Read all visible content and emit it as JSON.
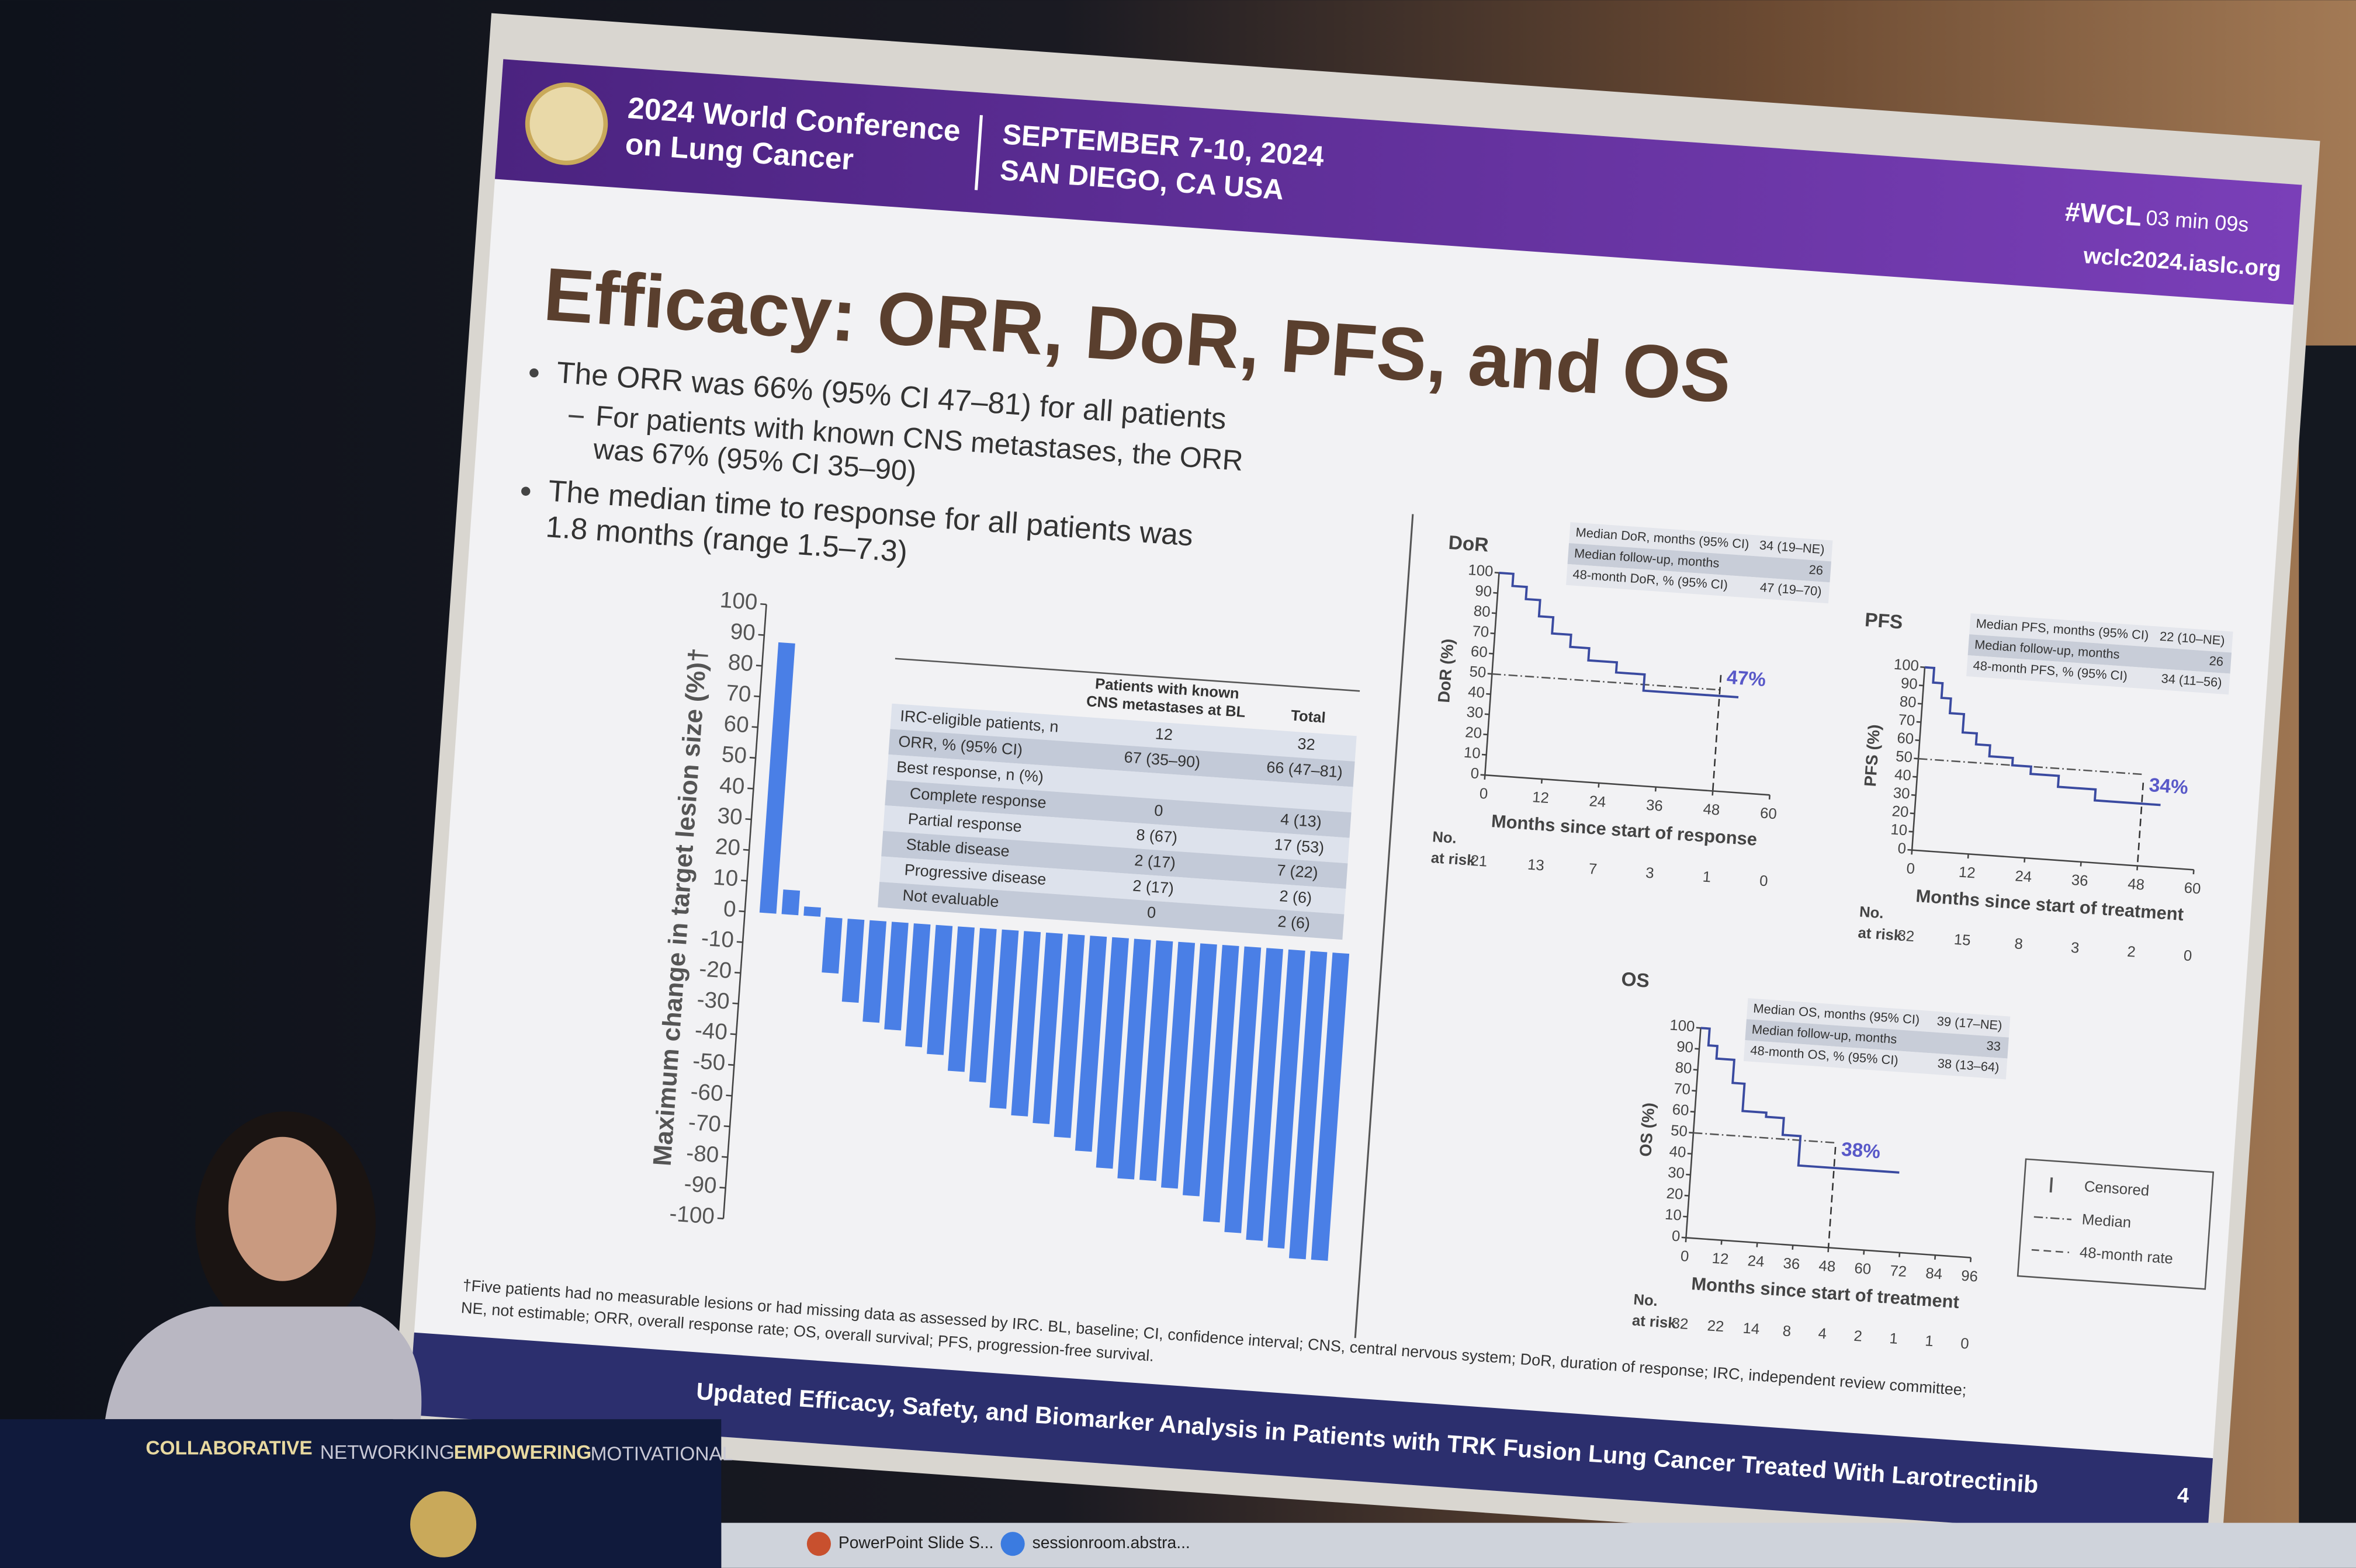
{
  "header": {
    "conference": [
      "2024 World Conference",
      "on Lung Cancer"
    ],
    "dates": "SEPTEMBER 7-10, 2024",
    "location": "SAN DIEGO, CA USA",
    "hashtag": "#WCL",
    "timer": "03 min 09s",
    "url": "wclc2024.iaslc.org"
  },
  "title": "Efficacy: ORR, DoR, PFS, and OS",
  "bullets": [
    {
      "lines": [
        "The ORR was 66% (95% CI 47–81) for all patients"
      ],
      "subbullets": [
        {
          "lines": [
            "For patients with known CNS metastases, the ORR",
            "was 67% (95% CI 35–90)"
          ]
        }
      ]
    },
    {
      "lines": [
        "The median time to response for all patients was",
        "1.8 months (range 1.5–7.3)"
      ]
    }
  ],
  "table": {
    "header": [
      [
        "Patients with known",
        "CNS metastases at BL"
      ],
      "Total"
    ],
    "rows": [
      [
        "IRC-eligible patients, n",
        "12",
        "32"
      ],
      [
        "ORR, % (95% CI)",
        "67 (35–90)",
        "66 (47–81)"
      ],
      [
        "Best response, n (%)"
      ],
      [
        "Complete response",
        "0",
        "4 (13)"
      ],
      [
        "Partial response",
        "8 (67)",
        "17 (53)"
      ],
      [
        "Stable disease",
        "2 (17)",
        "7 (22)"
      ],
      [
        "Progressive disease",
        "2 (17)",
        "2 (6)"
      ],
      [
        "Not evaluable",
        "0",
        "2 (6)"
      ]
    ]
  },
  "footnotes": [
    "†Five patients had no measurable lesions or had missing data as assessed by IRC. BL, baseline; CI, confidence interval; CNS, central nervous system; DoR, duration of response; IRC, independent review committee;",
    "NE, not estimable; ORR, overall response rate; OS, overall survival; PFS, progression-free survival."
  ],
  "footer": {
    "title": "Updated Efficacy, Safety, and Biomarker Analysis in Patients with TRK Fusion Lung Cancer Treated With Larotrectinib",
    "page": "4"
  },
  "podium": {
    "words": [
      "COLLABORATIVE",
      "NETWORKING",
      "EMPOWERING",
      "MOTIVATIONAL"
    ]
  },
  "taskbar": [
    "PowerPoint Slide S...",
    "sessionroom.abstra..."
  ],
  "chart_data": [
    {
      "type": "bar",
      "y_label": "Maximum change in target lesion size (%)†",
      "values": [
        88,
        8,
        3,
        -18,
        -27,
        -33,
        -35,
        -40,
        -42,
        -47,
        -50,
        -58,
        -60,
        -62,
        -66,
        -70,
        -75,
        -78,
        -78,
        -80,
        -82,
        -90,
        -93,
        -95,
        -97,
        -100,
        -100
      ],
      "color": "#4a7fe6",
      "ylim": [
        -100,
        100
      ],
      "yticks": [
        -100,
        -90,
        -80,
        -70,
        -60,
        -50,
        -40,
        -30,
        -20,
        -10,
        0,
        10,
        20,
        30,
        40,
        50,
        60,
        70,
        80,
        90,
        100
      ]
    },
    {
      "type": "line",
      "title": "DoR",
      "x_label": "Months since start of response",
      "y_label": "DoR (%)",
      "x": [
        0,
        3,
        3,
        6,
        6,
        9,
        9,
        12,
        12,
        16,
        16,
        20,
        20,
        26,
        26,
        32,
        32,
        48,
        52
      ],
      "values": [
        100,
        100,
        94,
        94,
        88,
        88,
        80,
        80,
        72,
        72,
        66,
        66,
        60,
        60,
        55,
        55,
        47,
        47,
        47
      ],
      "color": "#3a4aa0",
      "xlim": [
        0,
        60
      ],
      "xticks": [
        0,
        12,
        24,
        36,
        48,
        60
      ],
      "ylim": [
        0,
        100
      ],
      "yticks": [
        0,
        10,
        20,
        30,
        40,
        50,
        60,
        70,
        80,
        90,
        100
      ],
      "reference_lines": {
        "median": 50,
        "landmark_month": 48
      },
      "annotation": "47%",
      "summary": [
        [
          "Median DoR, months (95% CI)",
          "34 (19–NE)"
        ],
        [
          "Median follow-up, months",
          "26"
        ],
        [
          "48-month DoR, % (95% CI)",
          "47 (19–70)"
        ]
      ],
      "risk": {
        "label": [
          "No.",
          "at risk"
        ],
        "values": [
          21,
          13,
          7,
          3,
          1,
          0
        ]
      }
    },
    {
      "type": "line",
      "title": "PFS",
      "x_label": "Months since start of treatment",
      "y_label": "PFS (%)",
      "x": [
        0,
        2,
        2,
        4,
        4,
        6,
        6,
        9,
        9,
        12,
        12,
        15,
        15,
        20,
        20,
        24,
        24,
        30,
        30,
        38,
        38,
        48,
        52
      ],
      "values": [
        100,
        100,
        92,
        92,
        84,
        84,
        76,
        76,
        66,
        66,
        60,
        60,
        54,
        54,
        50,
        50,
        46,
        46,
        40,
        40,
        34,
        34,
        34
      ],
      "color": "#3a4aa0",
      "xlim": [
        0,
        60
      ],
      "xticks": [
        0,
        12,
        24,
        36,
        48,
        60
      ],
      "ylim": [
        0,
        100
      ],
      "yticks": [
        0,
        10,
        20,
        30,
        40,
        50,
        60,
        70,
        80,
        90,
        100
      ],
      "reference_lines": {
        "median": 50,
        "landmark_month": 48
      },
      "annotation": "34%",
      "summary": [
        [
          "Median PFS, months (95% CI)",
          "22 (10–NE)"
        ],
        [
          "Median follow-up, months",
          "26"
        ],
        [
          "48-month PFS, % (95% CI)",
          "34 (11–56)"
        ]
      ],
      "risk": {
        "label": [
          "No.",
          "at risk"
        ],
        "values": [
          32,
          15,
          8,
          3,
          2,
          0
        ]
      }
    },
    {
      "type": "line",
      "title": "OS",
      "x_label": "Months since start of treatment",
      "y_label": "OS (%)",
      "x": [
        0,
        3,
        3,
        6,
        6,
        12,
        12,
        16,
        16,
        24,
        24,
        30,
        30,
        36,
        36,
        48,
        56,
        70
      ],
      "values": [
        100,
        100,
        92,
        92,
        86,
        86,
        75,
        75,
        62,
        62,
        60,
        60,
        52,
        52,
        38,
        38,
        38,
        38
      ],
      "color": "#3a4aa0",
      "xlim": [
        0,
        96
      ],
      "xticks": [
        0,
        12,
        24,
        36,
        48,
        60,
        72,
        84,
        96
      ],
      "ylim": [
        0,
        100
      ],
      "yticks": [
        0,
        10,
        20,
        30,
        40,
        50,
        60,
        70,
        80,
        90,
        100
      ],
      "reference_lines": {
        "median": 50,
        "landmark_month": 48
      },
      "annotation": "38%",
      "summary": [
        [
          "Median OS, months (95% CI)",
          "39 (17–NE)"
        ],
        [
          "Median follow-up, months",
          "33"
        ],
        [
          "48-month OS, % (95% CI)",
          "38 (13–64)"
        ]
      ],
      "risk": {
        "label": [
          "No.",
          "at risk"
        ],
        "values": [
          32,
          22,
          14,
          8,
          4,
          2,
          1,
          1,
          0
        ]
      },
      "legend": [
        "Censored",
        "Median",
        "48-month rate"
      ]
    }
  ]
}
